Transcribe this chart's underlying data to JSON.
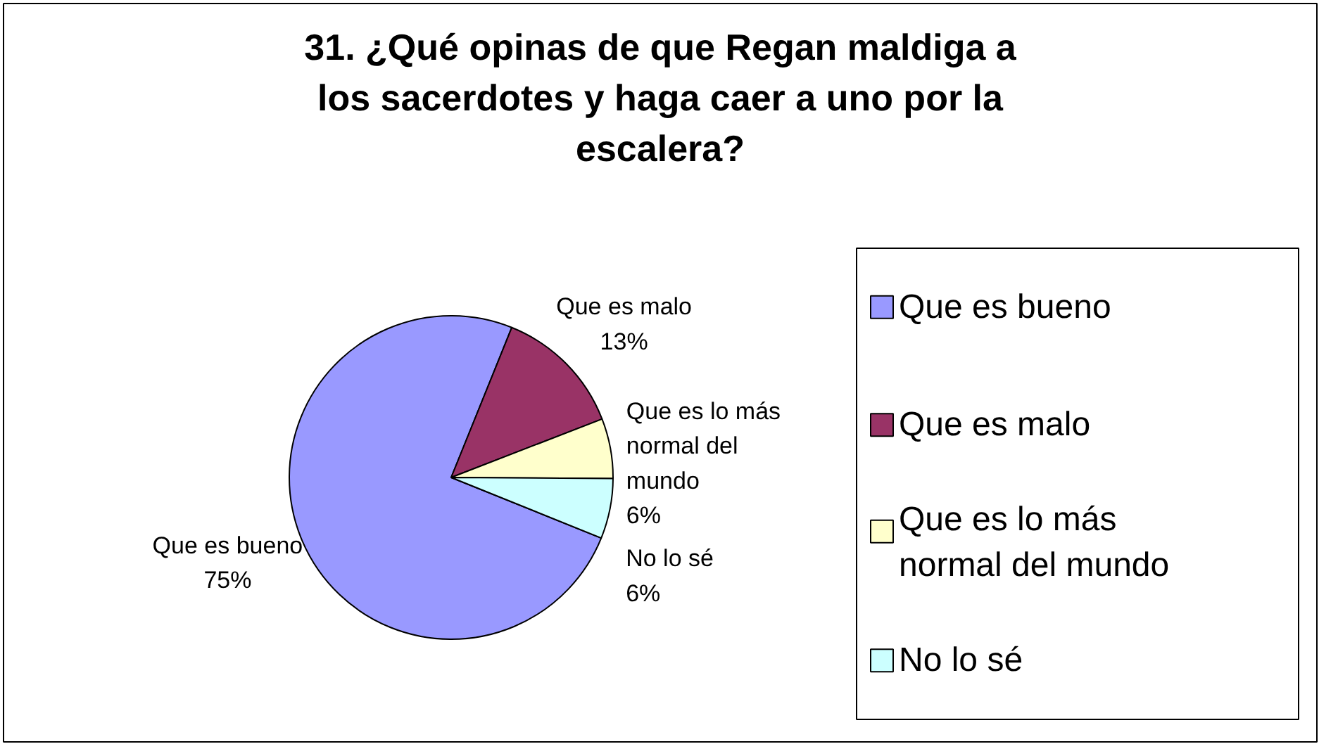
{
  "chart_data": {
    "type": "pie",
    "title": "31. ¿Qué opinas de que Regan maldiga a los sacerdotes y haga caer a uno por la escalera?",
    "categories": [
      "Que es bueno",
      "Que es malo",
      "Que es lo más normal del mundo",
      "No lo sé"
    ],
    "values": [
      75,
      13,
      6,
      6
    ],
    "colors": [
      "#9999ff",
      "#993366",
      "#ffffcc",
      "#ccffff"
    ],
    "legend": "right",
    "value_labels": [
      "75%",
      "13%",
      "6%",
      "6%"
    ]
  }
}
